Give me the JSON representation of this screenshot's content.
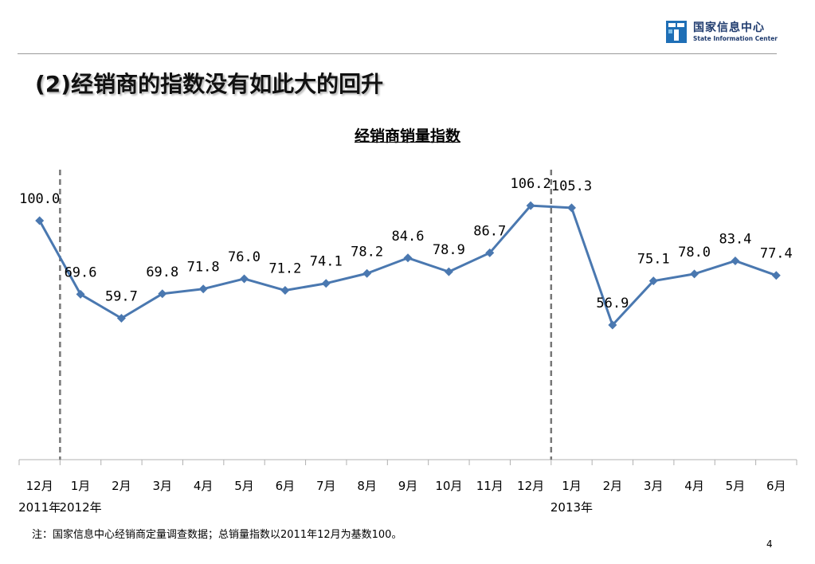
{
  "logo": {
    "name_cn": "国家信息中心",
    "name_en": "State Information Center"
  },
  "slide_title": "(2)经销商的指数没有如此大的回升",
  "chart_data": {
    "type": "line",
    "title": "经销商销量指数",
    "categories": [
      "12月",
      "1月",
      "2月",
      "3月",
      "4月",
      "5月",
      "6月",
      "7月",
      "8月",
      "9月",
      "10月",
      "11月",
      "12月",
      "1月",
      "2月",
      "3月",
      "4月",
      "5月",
      "6月"
    ],
    "year_labels": [
      {
        "text": "2011年",
        "index": 0
      },
      {
        "text": "2012年",
        "index": 1
      },
      {
        "text": "2013年",
        "index": 13
      }
    ],
    "series": [
      {
        "values": [
          100.0,
          69.6,
          59.7,
          69.8,
          71.8,
          76.0,
          71.2,
          74.1,
          78.2,
          84.6,
          78.9,
          86.7,
          106.2,
          105.3,
          56.9,
          75.1,
          78.0,
          83.4,
          77.4
        ],
        "labels": [
          "100.0",
          "69.6",
          "59.7",
          "69.8",
          "71.8",
          "76.0",
          "71.2",
          "74.1",
          "78.2",
          "84.6",
          "78.9",
          "86.7",
          "106.2",
          "105.3",
          "56.9",
          "75.1",
          "78.0",
          "83.4",
          "77.4"
        ]
      }
    ],
    "ylim": [
      -20,
      130
    ],
    "grid": false,
    "year_dividers_between": [
      0,
      12
    ],
    "colors": {
      "line": "#4a78b0",
      "marker": "#4a78b0",
      "divider": "#777777",
      "axis": "#b0b0b0"
    }
  },
  "note": "注：国家信息中心经销商定量调查数据；总销量指数以2011年12月为基数100。",
  "page_number": "4"
}
